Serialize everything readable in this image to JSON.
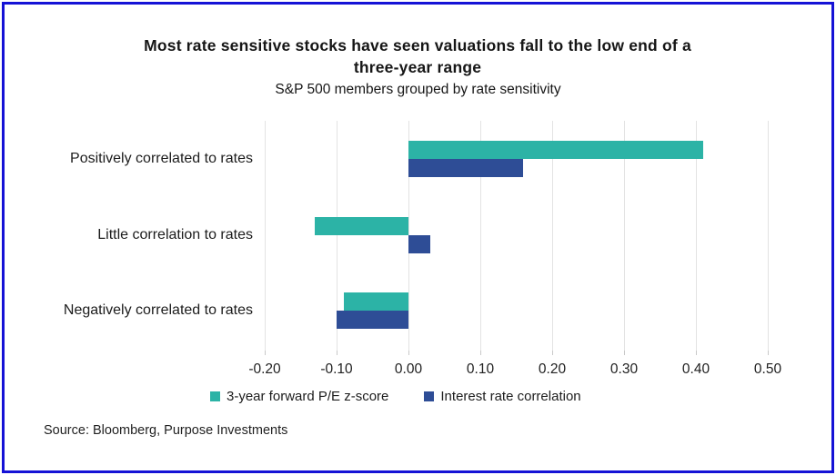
{
  "frame": {
    "title": "Most rate sensitive stocks have seen valuations fall to the low end of a three-year range",
    "subtitle": "S&P 500 members grouped by rate sensitivity",
    "source": "Source: Bloomberg, Purpose Investments",
    "border_color": "#1512d6"
  },
  "chart_data": {
    "type": "bar",
    "orientation": "horizontal",
    "title": "Most rate sensitive stocks have seen valuations fall to the low end of a three-year range",
    "subtitle": "S&P 500 members grouped by rate sensitivity",
    "categories": [
      "Positively correlated to rates",
      "Little correlation to rates",
      "Negatively correlated to rates"
    ],
    "series": [
      {
        "name": "3-year forward P/E z-score",
        "color": "#2cb3a6",
        "values": [
          0.41,
          -0.13,
          -0.09
        ]
      },
      {
        "name": "Interest rate correlation",
        "color": "#2e4d96",
        "values": [
          0.16,
          0.03,
          -0.1
        ]
      }
    ],
    "xlim": [
      -0.2,
      0.5
    ],
    "x_ticks": [
      {
        "label": "-0.20",
        "value": -0.2
      },
      {
        "label": "-0.10",
        "value": -0.1
      },
      {
        "label": "0.00",
        "value": 0.0
      },
      {
        "label": "0.10",
        "value": 0.1
      },
      {
        "label": "0.20",
        "value": 0.2
      },
      {
        "label": "0.30",
        "value": 0.3
      },
      {
        "label": "0.40",
        "value": 0.4
      },
      {
        "label": "0.50",
        "value": 0.5
      }
    ],
    "grid": "vertical-only",
    "legend_position": "bottom"
  }
}
